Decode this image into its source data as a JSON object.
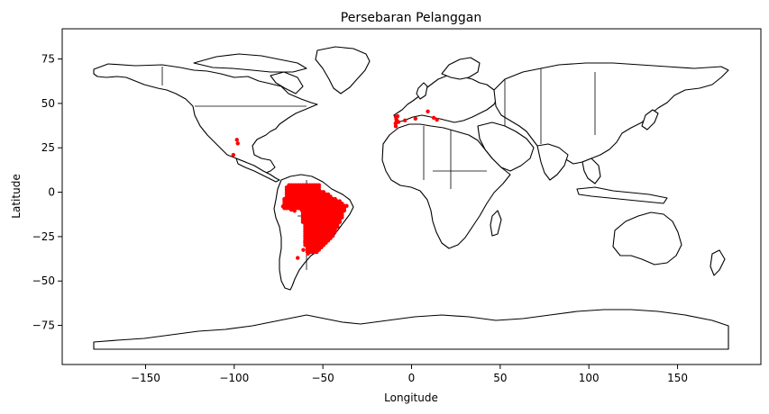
{
  "chart_data": {
    "type": "scatter",
    "title": "Persebaran Pelanggan",
    "xlabel": "Longitude",
    "ylabel": "Latitude",
    "xlim": [
      -197,
      197
    ],
    "ylim": [
      -97,
      92
    ],
    "xticks": [
      -150,
      -100,
      -50,
      0,
      50,
      100,
      150
    ],
    "yticks": [
      -75,
      -50,
      -25,
      0,
      25,
      50,
      75
    ],
    "grid": false,
    "basemap": "world country outlines",
    "point_color": "#ff0000",
    "land_color": "#ffffff",
    "edge_color": "#000000",
    "series": [
      {
        "points": [
          [
            -98.5,
            29.5
          ],
          [
            -98.0,
            27.5
          ],
          [
            -100.5,
            21.0
          ],
          [
            -9.0,
            38.7
          ],
          [
            -8.6,
            41.1
          ],
          [
            -8.4,
            40.2
          ],
          [
            -7.9,
            42.8
          ],
          [
            -8.8,
            42.3
          ],
          [
            -7.4,
            39.5
          ],
          [
            -8.9,
            37.1
          ],
          [
            -3.7,
            40.4
          ],
          [
            2.2,
            41.4
          ],
          [
            9.2,
            45.5
          ],
          [
            12.5,
            41.9
          ],
          [
            14.3,
            40.8
          ],
          [
            -60.0,
            3.0
          ],
          [
            -62.5,
            2.5
          ],
          [
            -59.0,
            1.5
          ],
          [
            -63.0,
            -4.0
          ],
          [
            -60.0,
            -3.1
          ],
          [
            -67.8,
            -9.9
          ],
          [
            -70.0,
            -8.5
          ],
          [
            -72.5,
            -8.0
          ],
          [
            -64.0,
            -8.8
          ],
          [
            -63.9,
            -8.8
          ],
          [
            -62.0,
            -10.0
          ],
          [
            -66.0,
            -10.5
          ],
          [
            -56.0,
            -15.5
          ],
          [
            -58.0,
            -18.0
          ],
          [
            -54.6,
            -20.4
          ],
          [
            -61.0,
            -32.5
          ],
          [
            -60.0,
            -28.0
          ],
          [
            -58.4,
            -34.6
          ],
          [
            -64.2,
            -37.0
          ],
          [
            -57.5,
            -31.0
          ]
        ],
        "dense_region_brazil": {
          "lon_range": [
            -73,
            -34
          ],
          "lat_range": [
            -34,
            4
          ],
          "point_spacing_deg": 1.3
        }
      }
    ]
  }
}
